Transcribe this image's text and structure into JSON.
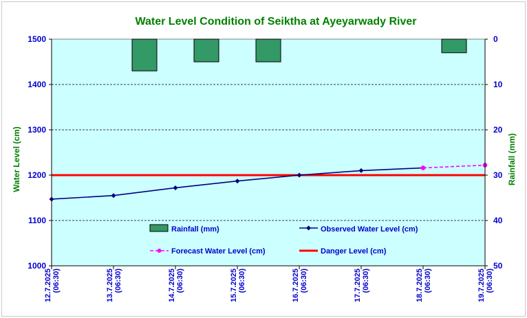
{
  "chart_data": {
    "type": "line",
    "title": "Water Level Condition of Seiktha at Ayeyarwady River",
    "ylabel": "Water Level (cm)",
    "ylabel_right": "Rainfall (mm)",
    "ylim": [
      1000,
      1500
    ],
    "ylim_right": [
      0,
      50
    ],
    "yticks": [
      "1000",
      "1100",
      "1200",
      "1300",
      "1400",
      "1500"
    ],
    "yticks_right": [
      "0",
      "10",
      "20",
      "30",
      "40",
      "50"
    ],
    "categories": [
      [
        "12.7.2025",
        "(06:30)"
      ],
      [
        "13.7.2025",
        "(06:30)"
      ],
      [
        "14.7.2025",
        "(06:30)"
      ],
      [
        "15.7.2025",
        "(06:30)"
      ],
      [
        "16.7.2025",
        "(06:30)"
      ],
      [
        "17.7.2025",
        "(06:30)"
      ],
      [
        "18.7.2025",
        "(06:30)"
      ],
      [
        "19.7.2025",
        "(06:30)"
      ]
    ],
    "rainfall": {
      "name": "Rainfall (mm)",
      "color": "#339966",
      "values": [
        null,
        7,
        5,
        5,
        null,
        null,
        3
      ]
    },
    "observed": {
      "name": "Observed Water Level (cm)",
      "color": "#000080",
      "values": [
        1147,
        1155,
        1172,
        1187,
        1200,
        1210,
        1216
      ]
    },
    "forecast": {
      "name": "Forecast Water Level (cm)",
      "color": "#ff00ff",
      "from_index": 6,
      "values": [
        null,
        null,
        null,
        null,
        null,
        null,
        1216,
        1222
      ]
    },
    "danger": {
      "name": "Danger Level (cm)",
      "color": "#ff0000",
      "value": 1200
    },
    "grid": true,
    "plot_background": "#ccffff",
    "legend_placement": "inside-bottom"
  }
}
